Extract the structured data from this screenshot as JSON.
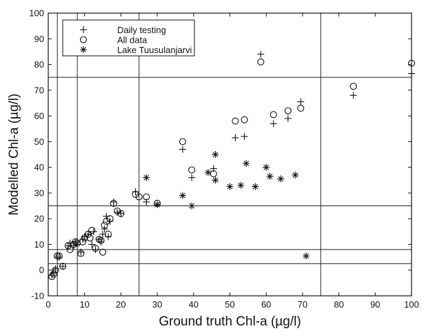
{
  "chart_data": {
    "type": "scatter",
    "title": "",
    "xlabel": "Ground truth Chl-a (µg/l)",
    "ylabel": "Modelled Chl-a (µg/l)",
    "xlim": [
      0,
      100
    ],
    "ylim": [
      -10,
      100
    ],
    "xticks": [
      "0",
      "10",
      "20",
      "30",
      "40",
      "50",
      "60",
      "70",
      "80",
      "90",
      "100"
    ],
    "yticks": [
      "-10",
      "0",
      "10",
      "20",
      "30",
      "40",
      "50",
      "60",
      "70",
      "80",
      "90",
      "100"
    ],
    "grid": false,
    "legend_position": "top-left",
    "reference_lines": {
      "vertical": [
        2.5,
        8,
        25,
        75
      ],
      "horizontal": [
        2.5,
        8,
        25,
        75
      ]
    },
    "series": [
      {
        "name": "Daily testing",
        "marker": "plus",
        "x": [
          1,
          1.5,
          2,
          2.5,
          3,
          4,
          5.5,
          6,
          7,
          7.5,
          8,
          9,
          9.5,
          10,
          11,
          12,
          12.5,
          13,
          14,
          14.5,
          15,
          15.5,
          16,
          16.5,
          17,
          18,
          19,
          20,
          24,
          27,
          30,
          37,
          39.5,
          45.5,
          51.5,
          54,
          58.5,
          62,
          66,
          69.5,
          84,
          100
        ],
        "y": [
          -2,
          -1,
          0.5,
          5,
          5,
          1.5,
          9.5,
          10.5,
          9.5,
          11,
          10,
          7,
          12,
          13,
          14,
          10,
          15,
          8,
          12,
          11,
          14,
          16,
          21,
          13,
          19,
          26.5,
          22.5,
          22,
          30.5,
          26.5,
          25.5,
          47,
          36,
          39.5,
          51.5,
          52,
          84,
          57,
          59,
          65.5,
          68,
          76.5
        ]
      },
      {
        "name": "All data",
        "marker": "circle",
        "x": [
          1,
          1.5,
          2,
          2.5,
          3,
          4,
          5.5,
          6,
          7,
          7.5,
          8,
          9,
          9.5,
          10,
          11,
          11.5,
          12,
          13,
          14,
          14.5,
          15,
          15.5,
          16,
          16.5,
          17,
          18,
          19,
          20,
          24,
          25,
          27,
          30,
          37,
          39.5,
          45.5,
          51.5,
          54,
          58.5,
          62,
          66,
          69.5,
          84,
          100
        ],
        "y": [
          -2.5,
          -1.5,
          0,
          5.5,
          5.5,
          1.5,
          9.5,
          8,
          10,
          11,
          10.5,
          6.5,
          11,
          12.5,
          14,
          12.5,
          15.5,
          8.5,
          12,
          11.5,
          7,
          17.5,
          19,
          14,
          20,
          26,
          23,
          22,
          29.5,
          28.5,
          28.5,
          26,
          50,
          39,
          37.5,
          58,
          58.5,
          81,
          60.5,
          62,
          63,
          71.5,
          80.5
        ]
      },
      {
        "name": "Lake Tuusulanjarvi",
        "marker": "star",
        "x": [
          27,
          30,
          37,
          39.5,
          44,
          46,
          46,
          50,
          53,
          54.5,
          57,
          60,
          61,
          64,
          68,
          71
        ],
        "y": [
          36,
          25.5,
          29,
          25,
          38,
          45,
          35,
          32.5,
          33,
          41.5,
          32.5,
          40,
          36.5,
          35.5,
          37,
          5.5
        ]
      }
    ]
  }
}
